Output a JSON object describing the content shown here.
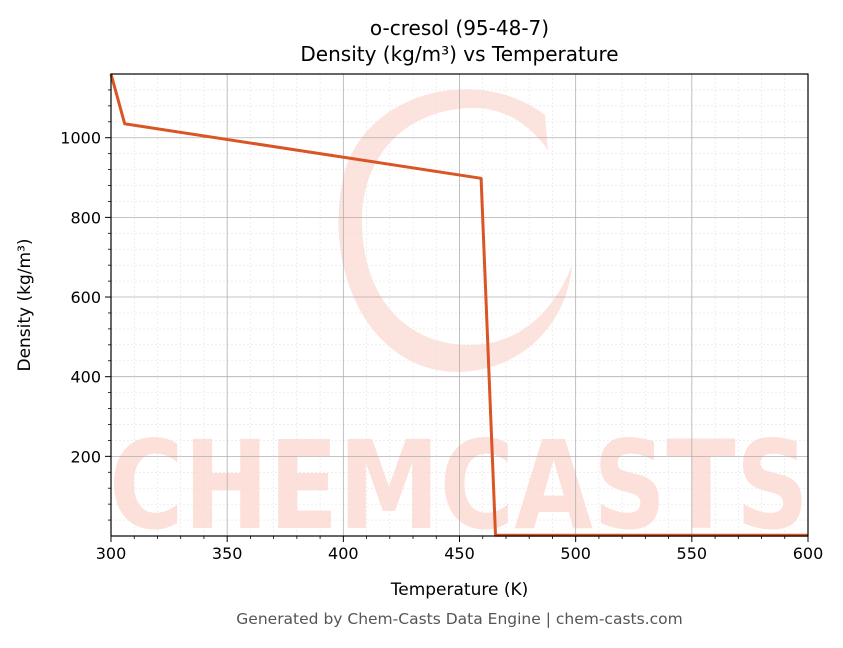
{
  "footer": "Generated by Chem-Casts Data Engine | chem-casts.com",
  "watermark": "CHEMCASTS",
  "colors": {
    "line": "#d95526",
    "watermark": "#fde0d9",
    "grid_major": "#b0b0b0",
    "grid_minor": "#e3e3e3"
  },
  "chart_data": {
    "type": "line",
    "title": "o-cresol (95-48-7)",
    "subtitle": "Density (kg/m³) vs Temperature",
    "xlabel": "Temperature (K)",
    "ylabel": "Density (kg/m³)",
    "xlim": [
      300,
      600
    ],
    "ylim": [
      0,
      1160
    ],
    "xticks": [
      300,
      350,
      400,
      450,
      500,
      550,
      600
    ],
    "yticks": [
      200,
      400,
      600,
      800,
      1000
    ],
    "grid": true,
    "series": [
      {
        "x": [
          300,
          305.9,
          459.3,
          465.5,
          600
        ],
        "y": [
          1160,
          1035,
          898,
          2,
          2
        ]
      }
    ]
  }
}
